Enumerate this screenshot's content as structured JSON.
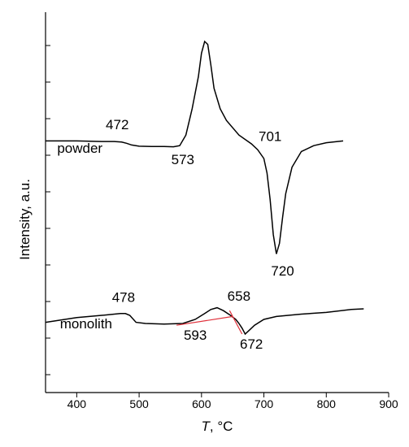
{
  "chart_data": {
    "type": "line",
    "xlabel": "T, °C",
    "xlabel_var": "T",
    "xlabel_unit": ", °C",
    "ylabel": "Intensity, a.u.",
    "xlim": [
      350,
      900
    ],
    "x_ticks": [
      400,
      500,
      600,
      700,
      800,
      900
    ],
    "y_tick_labels": "none",
    "grid": false,
    "legend": "none",
    "series": [
      {
        "name": "powder",
        "color": "#000000",
        "points": [
          [
            350,
            1.0
          ],
          [
            400,
            1.0
          ],
          [
            440,
            0.99
          ],
          [
            460,
            0.99
          ],
          [
            472,
            0.98
          ],
          [
            480,
            0.96
          ],
          [
            488,
            0.93
          ],
          [
            500,
            0.91
          ],
          [
            520,
            0.905
          ],
          [
            540,
            0.905
          ],
          [
            555,
            0.9
          ],
          [
            565,
            0.92
          ],
          [
            575,
            1.1
          ],
          [
            585,
            1.55
          ],
          [
            595,
            2.1
          ],
          [
            600,
            2.5
          ],
          [
            605,
            2.7
          ],
          [
            610,
            2.65
          ],
          [
            615,
            2.3
          ],
          [
            620,
            1.9
          ],
          [
            630,
            1.55
          ],
          [
            640,
            1.35
          ],
          [
            660,
            1.1
          ],
          [
            680,
            0.95
          ],
          [
            690,
            0.85
          ],
          [
            700,
            0.7
          ],
          [
            705,
            0.45
          ],
          [
            710,
            0.0
          ],
          [
            715,
            -0.6
          ],
          [
            720,
            -0.93
          ],
          [
            725,
            -0.75
          ],
          [
            730,
            -0.3
          ],
          [
            735,
            0.1
          ],
          [
            745,
            0.55
          ],
          [
            760,
            0.82
          ],
          [
            780,
            0.92
          ],
          [
            800,
            0.97
          ],
          [
            827,
            1.0
          ]
        ],
        "label": "powder",
        "annotations": [
          "472",
          "573",
          "701",
          "720"
        ]
      },
      {
        "name": "monolith",
        "color": "#000000",
        "points": [
          [
            350,
            -2.1
          ],
          [
            400,
            -2.02
          ],
          [
            440,
            -1.98
          ],
          [
            470,
            -1.95
          ],
          [
            478,
            -1.95
          ],
          [
            485,
            -1.98
          ],
          [
            495,
            -2.1
          ],
          [
            510,
            -2.12
          ],
          [
            540,
            -2.13
          ],
          [
            570,
            -2.12
          ],
          [
            590,
            -2.05
          ],
          [
            605,
            -1.95
          ],
          [
            615,
            -1.88
          ],
          [
            625,
            -1.85
          ],
          [
            635,
            -1.9
          ],
          [
            645,
            -1.97
          ],
          [
            655,
            -2.05
          ],
          [
            660,
            -2.12
          ],
          [
            665,
            -2.2
          ],
          [
            670,
            -2.3
          ],
          [
            675,
            -2.25
          ],
          [
            685,
            -2.15
          ],
          [
            700,
            -2.05
          ],
          [
            720,
            -2.0
          ],
          [
            760,
            -1.96
          ],
          [
            800,
            -1.93
          ],
          [
            840,
            -1.88
          ],
          [
            860,
            -1.87
          ]
        ],
        "label": "monolith",
        "annotations": [
          "478",
          "593",
          "658",
          "672"
        ]
      }
    ],
    "tangent_lines": {
      "color": "#e0303a",
      "segments": [
        [
          [
            560,
            -2.15
          ],
          [
            650,
            -2.0
          ]
        ],
        [
          [
            645,
            -1.9
          ],
          [
            665,
            -2.3
          ]
        ]
      ]
    },
    "annotations": [
      {
        "text": "472",
        "x": 465,
        "y": 1.2
      },
      {
        "text": "573",
        "x": 570,
        "y": 0.6
      },
      {
        "text": "701",
        "x": 710,
        "y": 1.0
      },
      {
        "text": "720",
        "x": 730,
        "y": -1.3
      },
      {
        "text": "powder",
        "x": 405,
        "y": 0.8
      },
      {
        "text": "478",
        "x": 475,
        "y": -1.75
      },
      {
        "text": "658",
        "x": 660,
        "y": -1.73
      },
      {
        "text": "monolith",
        "x": 415,
        "y": -2.2
      },
      {
        "text": "593",
        "x": 590,
        "y": -2.4
      },
      {
        "text": "672",
        "x": 680,
        "y": -2.55
      }
    ]
  }
}
